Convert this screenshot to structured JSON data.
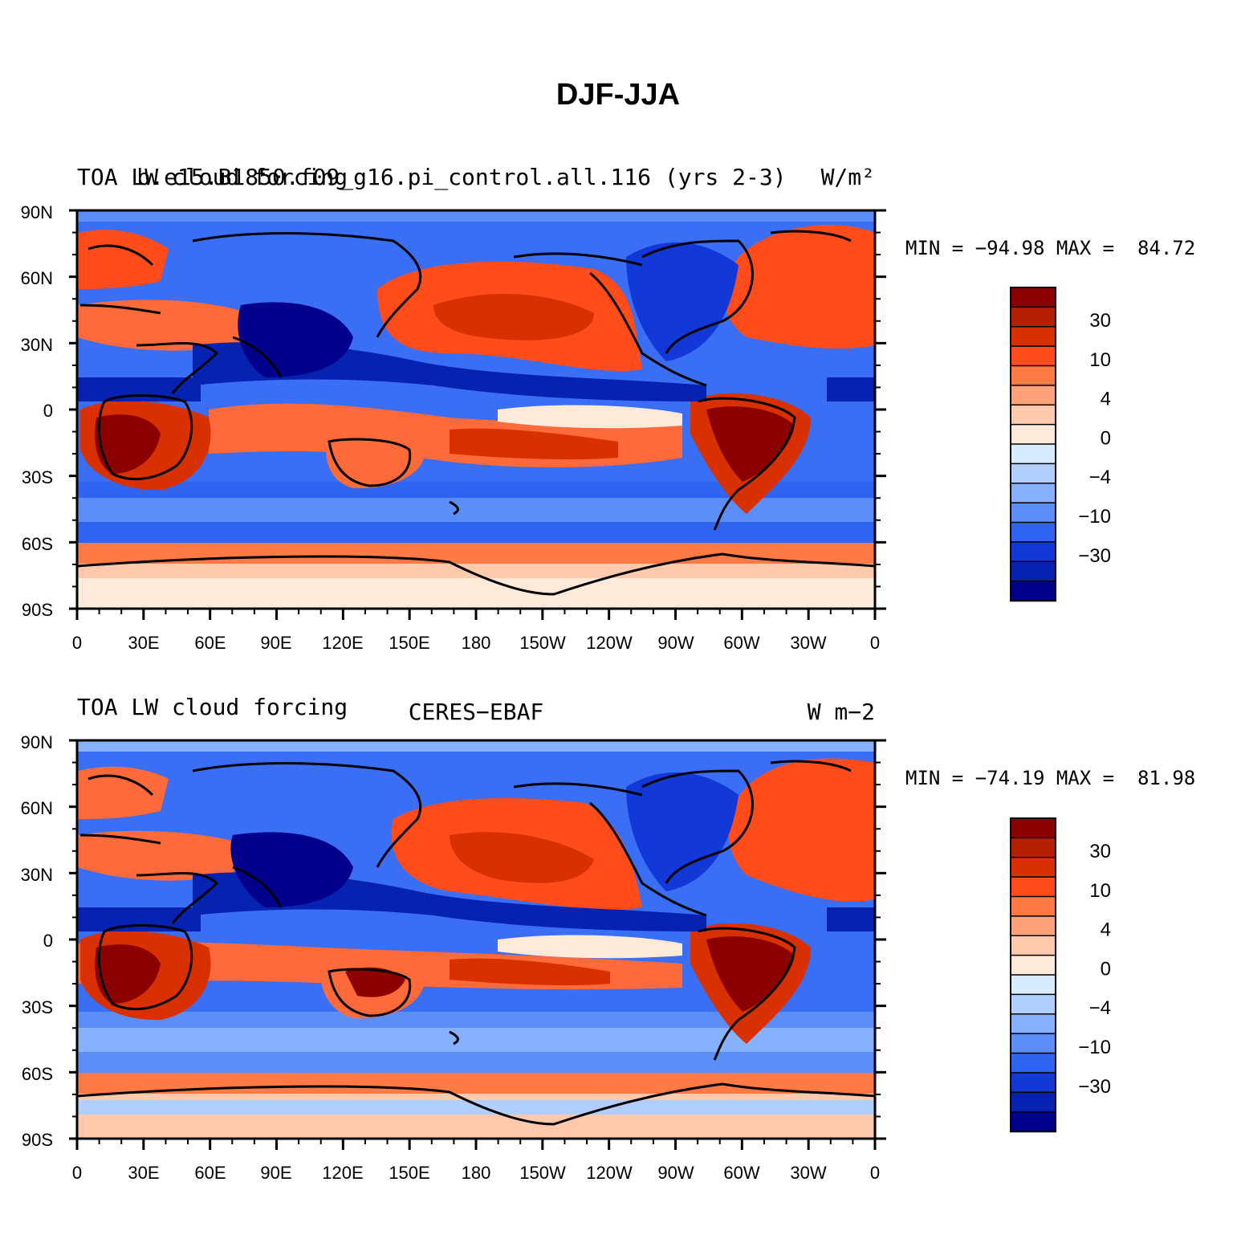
{
  "figure": {
    "title": "DJF-JJA"
  },
  "panels": [
    {
      "left_title": "TOA LW cloud forcing",
      "center_title": "b.e15.B1850.f09_g16.pi_control.all.116 (yrs 2-3)",
      "units": "W/m²",
      "stats": "MIN = −94.98 MAX =  84.72"
    },
    {
      "left_title": "TOA LW cloud forcing",
      "center_title": "CERES−EBAF",
      "units": "W m−2",
      "stats": "MIN = −74.19 MAX =  81.98"
    }
  ],
  "axes": {
    "y_ticks": [
      "90N",
      "60N",
      "30N",
      "0",
      "30S",
      "60S",
      "90S"
    ],
    "x_ticks": [
      "0",
      "30E",
      "60E",
      "90E",
      "120E",
      "150E",
      "180",
      "150W",
      "120W",
      "90W",
      "60W",
      "30W",
      "0"
    ]
  },
  "colorbar": {
    "colors": [
      "#8b0000",
      "#b22000",
      "#d83000",
      "#ff4c1a",
      "#ff7a45",
      "#ffa27a",
      "#ffc9ad",
      "#ffe9d9",
      "#d8ebff",
      "#b0cfff",
      "#85b1ff",
      "#5b8ff7",
      "#2f64f0",
      "#1238d8",
      "#0622b0",
      "#00008b"
    ],
    "labels": [
      "30",
      "10",
      "4",
      "0",
      "−4",
      "−10",
      "−30"
    ]
  },
  "colors": {
    "ocean_pos": "#ff6a3a",
    "ocean_neg": "#3a6ef5"
  }
}
